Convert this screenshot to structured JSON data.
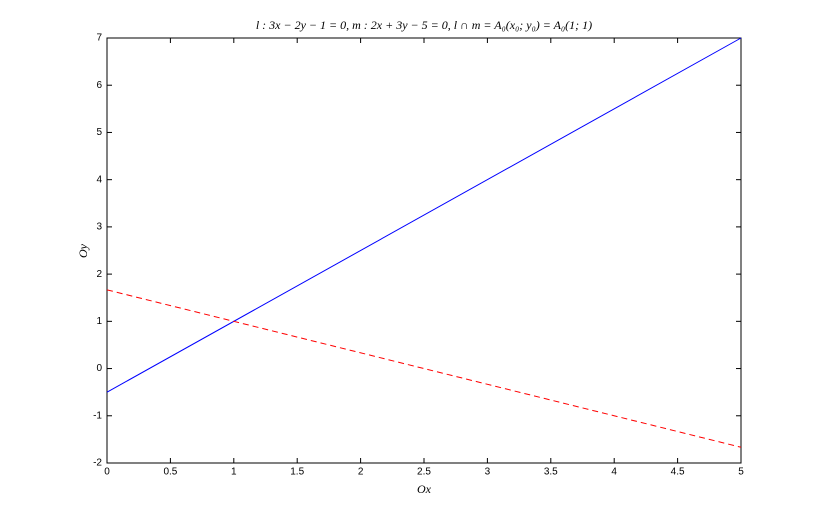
{
  "chart_data": {
    "type": "line",
    "title": "l : 3x − 2y − 1 = 0,   m : 2x + 3y − 5 = 0,   l ∩ m = A₀(x₀; y₀) = A₀(1; 1)",
    "xlabel": "Ox",
    "ylabel": "Oy",
    "x": [
      0,
      5
    ],
    "series": [
      {
        "color": "#0000ff",
        "style": "solid",
        "values": [
          -0.5,
          7
        ]
      },
      {
        "color": "#ff0000",
        "style": "dashed",
        "values": [
          1.6667,
          -1.6667
        ]
      }
    ],
    "xlim": [
      0,
      5
    ],
    "xticks": [
      0,
      0.5,
      1,
      1.5,
      2,
      2.5,
      3,
      3.5,
      4,
      4.5,
      5
    ],
    "ylim": [
      -2,
      7
    ],
    "yticks": [
      -2,
      -1,
      0,
      1,
      2,
      3,
      4,
      5,
      6,
      7
    ],
    "grid": false
  }
}
